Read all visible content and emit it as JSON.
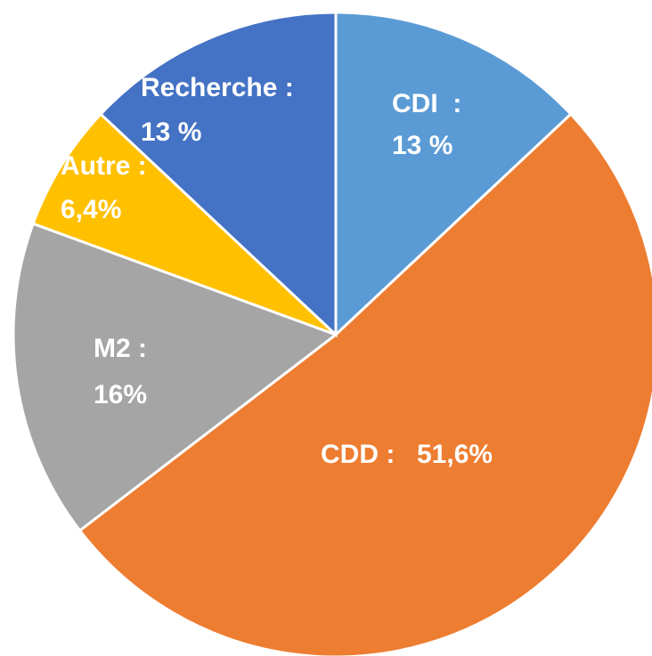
{
  "chart_data": {
    "type": "pie",
    "categories": [
      "CDI  :",
      "CDD :",
      "M2 :",
      "Autre :",
      "Recherche :"
    ],
    "values": [
      13,
      51.6,
      16,
      6.4,
      13
    ],
    "value_labels": [
      "13 %",
      "51,6%",
      "16%",
      "6,4%",
      "13 %"
    ],
    "colors": [
      "#5b9bd5",
      "#ed7d31",
      "#a5a5a5",
      "#ffc000",
      "#4472c4"
    ]
  }
}
